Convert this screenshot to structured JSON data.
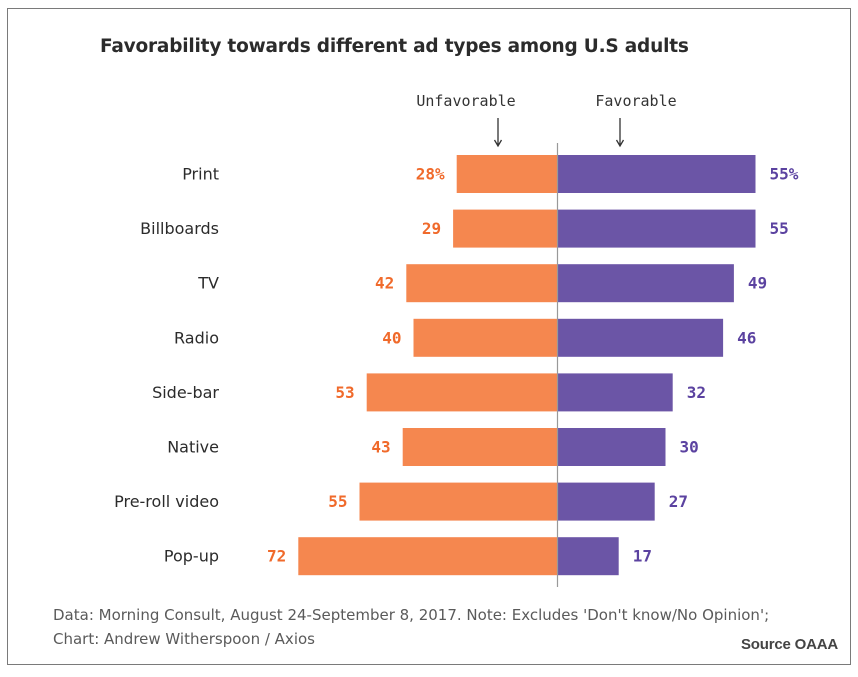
{
  "chart_data": {
    "type": "bar",
    "title": "Favorability towards different ad types among U.S adults",
    "categories": [
      "Print",
      "Billboards",
      "TV",
      "Radio",
      "Side-bar",
      "Native",
      "Pre-roll video",
      "Pop-up"
    ],
    "series": [
      {
        "name": "Unfavorable",
        "color": "#f5874f",
        "label_color": "#f06a2b",
        "values": [
          28,
          29,
          42,
          40,
          53,
          43,
          55,
          72
        ],
        "value_labels": [
          "28%",
          "29",
          "42",
          "40",
          "53",
          "43",
          "55",
          "72"
        ]
      },
      {
        "name": "Favorable",
        "color": "#6b55a6",
        "label_color": "#5b42a0",
        "values": [
          55,
          55,
          49,
          46,
          32,
          30,
          27,
          17
        ],
        "value_labels": [
          "55%",
          "55",
          "49",
          "46",
          "32",
          "30",
          "27",
          "17"
        ]
      }
    ],
    "footnote": "Data: Morning Consult, August 24-September 8, 2017. Note: Excludes 'Don't know/No Opinion'; Chart: Andrew Witherspoon / Axios",
    "source": "Source OAAA"
  }
}
